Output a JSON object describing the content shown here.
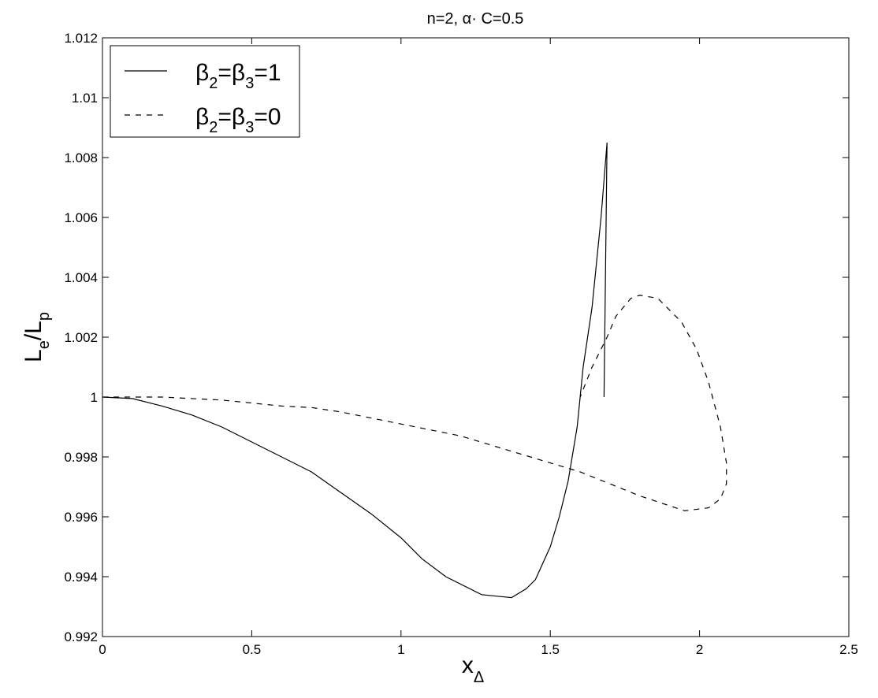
{
  "chart_data": {
    "type": "line",
    "title": "n=2, α· C=0.5",
    "xlabel": {
      "base": "x",
      "sub": "Δ"
    },
    "ylabel": {
      "base1": "L",
      "sub1": "e",
      "mid": "/L",
      "sub2": "p"
    },
    "xlim": [
      0,
      2.5
    ],
    "ylim": [
      0.992,
      1.012
    ],
    "xticks": [
      0,
      0.5,
      1,
      1.5,
      2,
      2.5
    ],
    "xtick_labels": [
      "0",
      "0.5",
      "1",
      "1.5",
      "2",
      "2.5"
    ],
    "yticks": [
      0.992,
      0.994,
      0.996,
      0.998,
      1,
      1.002,
      1.004,
      1.006,
      1.008,
      1.01,
      1.012
    ],
    "ytick_labels": [
      "0.992",
      "0.994",
      "0.996",
      "0.998",
      "1",
      "1.002",
      "1.004",
      "1.006",
      "1.008",
      "1.01",
      "1.012"
    ],
    "grid": false,
    "legend_position": "top-left",
    "series": [
      {
        "legend": {
          "b1": "β",
          "s1": "2",
          "eq": "=",
          "b2": "β",
          "s2": "3",
          "val": "=1"
        },
        "style": "solid",
        "color": "#000000",
        "points": [
          [
            0,
            1.0
          ],
          [
            0.1,
            0.99995
          ],
          [
            0.2,
            0.9997
          ],
          [
            0.3,
            0.9994
          ],
          [
            0.4,
            0.999
          ],
          [
            0.5,
            0.9985
          ],
          [
            0.6,
            0.998
          ],
          [
            0.7,
            0.9975
          ],
          [
            0.8,
            0.9968
          ],
          [
            0.9,
            0.9961
          ],
          [
            1.0,
            0.9953
          ],
          [
            1.07,
            0.9946
          ],
          [
            1.15,
            0.994
          ],
          [
            1.27,
            0.9934
          ],
          [
            1.37,
            0.9933
          ],
          [
            1.42,
            0.9936
          ],
          [
            1.45,
            0.9939
          ],
          [
            1.5,
            0.995
          ],
          [
            1.53,
            0.996
          ],
          [
            1.56,
            0.9972
          ],
          [
            1.59,
            0.999
          ],
          [
            1.61,
            1.001
          ],
          [
            1.64,
            1.003
          ],
          [
            1.67,
            1.006
          ],
          [
            1.69,
            1.0085
          ],
          [
            1.68,
            1.0
          ]
        ]
      },
      {
        "legend": {
          "b1": "β",
          "s1": "2",
          "eq": "=",
          "b2": "β",
          "s2": "3",
          "val": "=0"
        },
        "style": "dashed",
        "color": "#000000",
        "points": [
          [
            0,
            1.0
          ],
          [
            0.2,
            1.0
          ],
          [
            0.4,
            0.9999
          ],
          [
            0.6,
            0.9997
          ],
          [
            0.7,
            0.99965
          ],
          [
            0.8,
            0.9995
          ],
          [
            1.0,
            0.9991
          ],
          [
            1.2,
            0.9987
          ],
          [
            1.4,
            0.9981
          ],
          [
            1.6,
            0.9975
          ],
          [
            1.8,
            0.9967
          ],
          [
            1.95,
            0.9962
          ],
          [
            2.03,
            0.9963
          ],
          [
            2.07,
            0.9966
          ],
          [
            2.09,
            0.9971
          ],
          [
            2.09,
            0.9978
          ],
          [
            2.07,
            0.999
          ],
          [
            2.03,
            1.0005
          ],
          [
            1.99,
            1.0016
          ],
          [
            1.94,
            1.0025
          ],
          [
            1.86,
            1.0033
          ],
          [
            1.8,
            1.0034
          ],
          [
            1.77,
            1.0033
          ],
          [
            1.72,
            1.0027
          ],
          [
            1.69,
            1.002
          ],
          [
            1.64,
            1.001
          ],
          [
            1.6,
            1.0
          ]
        ]
      }
    ]
  }
}
